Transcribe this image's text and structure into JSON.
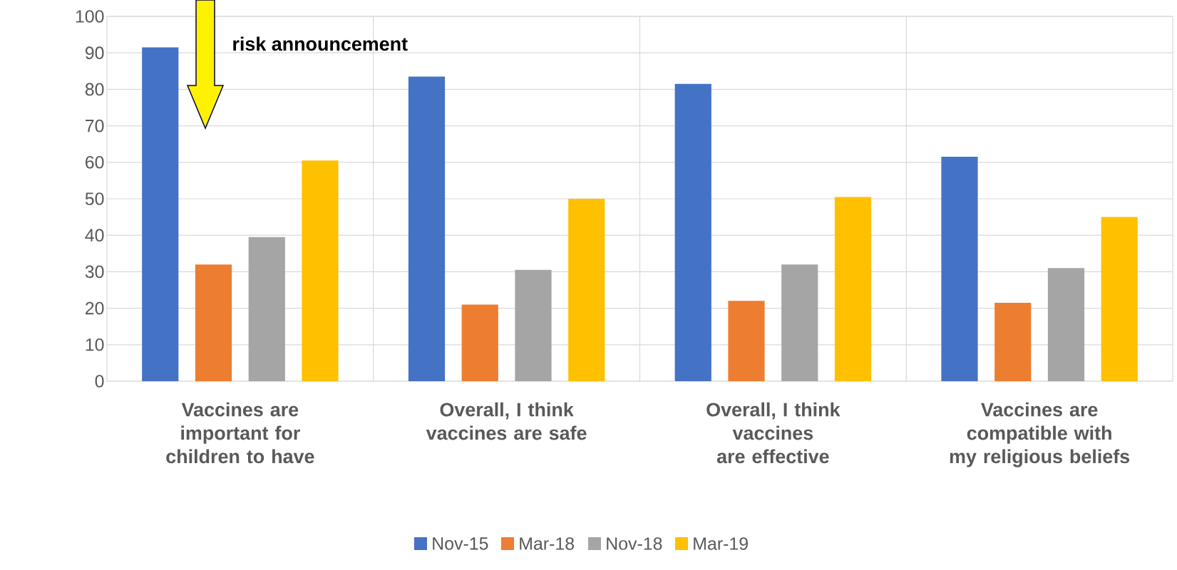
{
  "chart_data": {
    "type": "bar",
    "categories": [
      "Vaccines are important for children to have",
      "Overall, I think vaccines are safe",
      "Overall, I think vaccines are effective",
      "Vaccines are compatible with my religious beliefs"
    ],
    "series": [
      {
        "name": "Nov-15",
        "color": "#4472c4",
        "values": [
          91.5,
          83.5,
          81.5,
          61.5
        ]
      },
      {
        "name": "Mar-18",
        "color": "#ed7d31",
        "values": [
          32,
          21,
          22,
          21.5
        ]
      },
      {
        "name": "Nov-18",
        "color": "#a5a5a5",
        "values": [
          39.5,
          30.5,
          32,
          31
        ]
      },
      {
        "name": "Mar-19",
        "color": "#ffc000",
        "values": [
          60.5,
          50,
          50.5,
          45
        ]
      }
    ],
    "ylim": [
      0,
      100
    ],
    "yticks": [
      0,
      10,
      20,
      30,
      40,
      50,
      60,
      70,
      80,
      90,
      100
    ],
    "grid": true,
    "legend": "bottom",
    "annotations": [
      "risk announcement"
    ]
  }
}
